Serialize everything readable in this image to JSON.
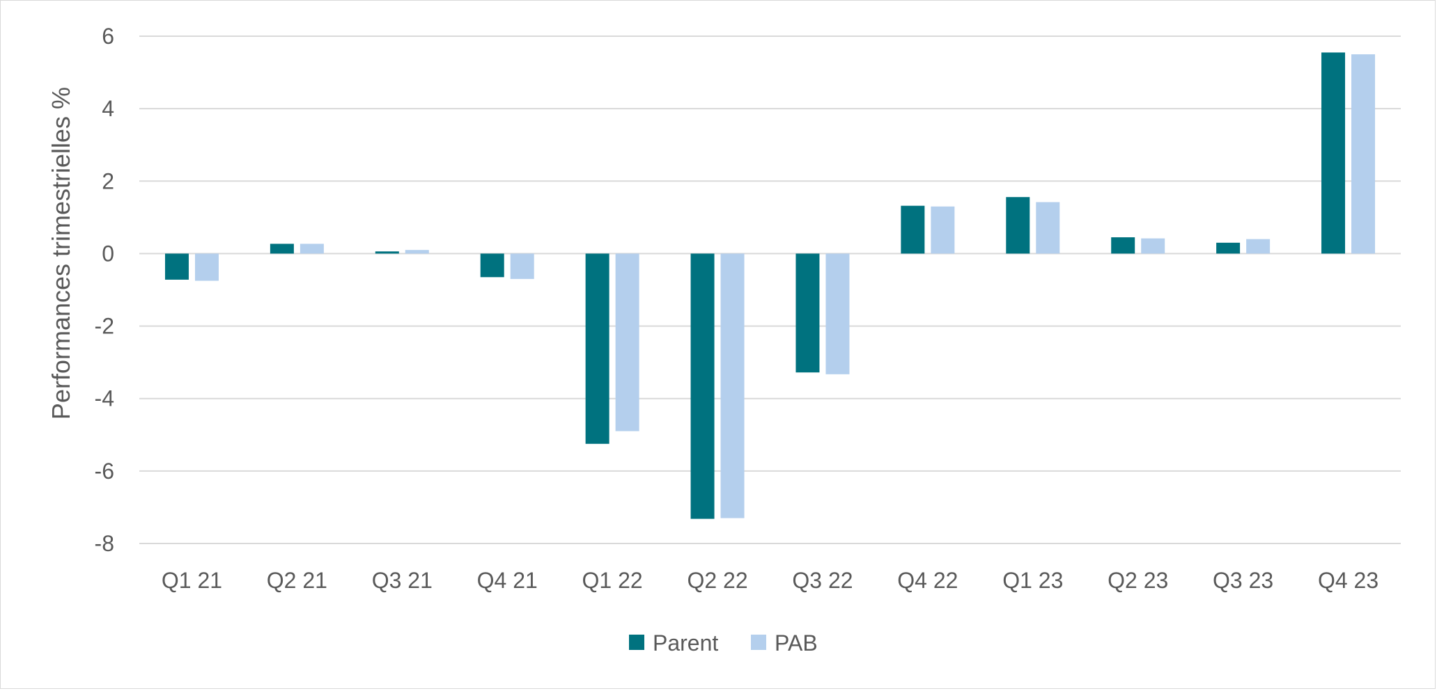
{
  "chart_data": {
    "type": "bar",
    "title": "",
    "xlabel": "",
    "ylabel": "Performances trimestrielles %",
    "ylim": [
      -8,
      6
    ],
    "yticks": [
      6,
      4,
      2,
      0,
      -2,
      -4,
      -6,
      -8
    ],
    "grid": true,
    "legend_position": "bottom",
    "categories": [
      "Q1 21",
      "Q2 21",
      "Q3 21",
      "Q4 21",
      "Q1 22",
      "Q2 22",
      "Q3 22",
      "Q4 22",
      "Q1 23",
      "Q2 23",
      "Q3 23",
      "Q4 23"
    ],
    "series": [
      {
        "name": "Parent",
        "color": "#00727f",
        "values": [
          -0.72,
          0.27,
          0.06,
          -0.65,
          -5.25,
          -7.32,
          -3.28,
          1.32,
          1.56,
          0.45,
          0.3,
          5.55
        ]
      },
      {
        "name": "PAB",
        "color": "#b4cfed",
        "values": [
          -0.75,
          0.27,
          0.1,
          -0.7,
          -4.9,
          -7.3,
          -3.33,
          1.3,
          1.42,
          0.42,
          0.4,
          5.5
        ]
      }
    ]
  }
}
